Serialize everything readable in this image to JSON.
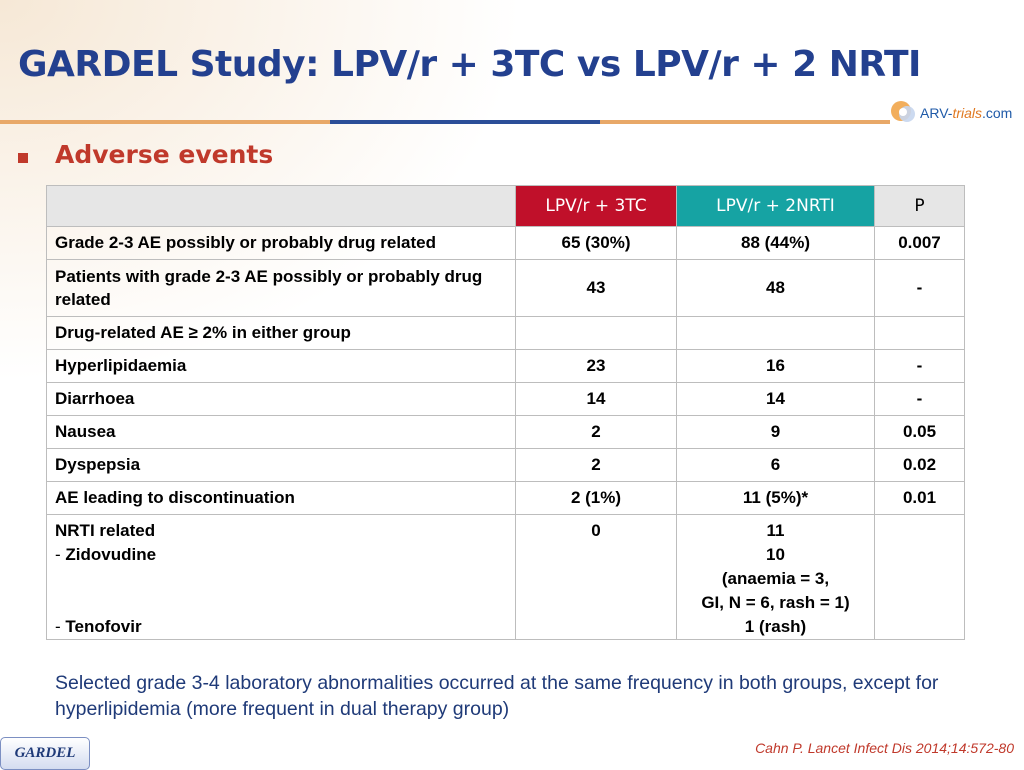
{
  "slide": {
    "title": "GARDEL Study: LPV/r + 3TC vs LPV/r + 2 NRTI",
    "logo_text_main": "ARV-",
    "logo_text_em": "trials",
    "logo_text_tail": ".com",
    "section_heading": "Adverse events",
    "footnote": "Selected grade 3-4 laboratory abnormalities occurred at the same frequency in both groups, except for hyperlipidemia (more frequent in dual therapy group)",
    "badge": "GARDEL",
    "citation": "Cahn P. Lancet Infect Dis 2014;14:572-80",
    "colors": {
      "title": "#23408f",
      "accent_red": "#c0392b",
      "arm_a": "#c0102a",
      "arm_b": "#16a3a3"
    }
  },
  "table": {
    "headers": [
      "",
      "LPV/r + 3TC",
      "LPV/r + 2NRTI",
      "P"
    ],
    "rows": [
      {
        "label": "Grade 2-3 AE possibly or probably drug related",
        "a": "65 (30%)",
        "b": "88 (44%)",
        "p": "0.007"
      },
      {
        "label": "Patients with grade 2-3 AE possibly or probably drug related",
        "a": "43",
        "b": "48",
        "p": "-"
      },
      {
        "label": "Drug-related AE ≥ 2% in either group",
        "a": "",
        "b": "",
        "p": ""
      },
      {
        "label": "Hyperlipidaemia",
        "a": "23",
        "b": "16",
        "p": "-"
      },
      {
        "label": "Diarrhoea",
        "a": "14",
        "b": "14",
        "p": "-"
      },
      {
        "label": "Nausea",
        "a": "2",
        "b": "9",
        "p": "0.05"
      },
      {
        "label": "Dyspepsia",
        "a": "2",
        "b": "6",
        "p": "0.02"
      },
      {
        "label": "AE leading to discontinuation",
        "a": "2 (1%)",
        "b": "11 (5%)*",
        "p": "0.01"
      }
    ],
    "last_row": {
      "label_lines": [
        "NRTI related",
        "- ",
        "Zidovudine",
        "- ",
        "Tenofovir"
      ],
      "a": "0",
      "b_lines": [
        "11",
        "10",
        "(anaemia = 3,",
        "GI, N = 6, rash = 1)",
        "1 (rash)"
      ],
      "p": ""
    }
  }
}
